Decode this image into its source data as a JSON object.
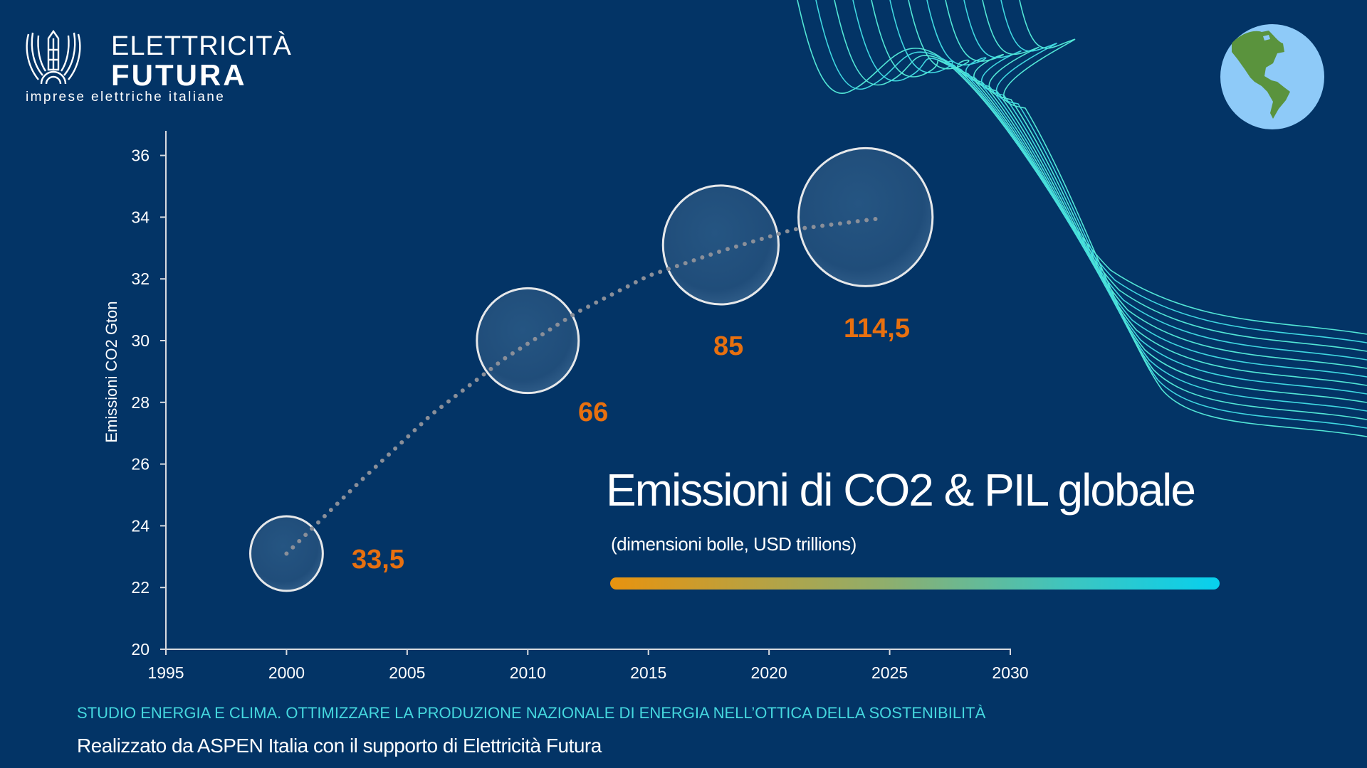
{
  "logo": {
    "line1": "ELETTRICITÀ",
    "line2": "FUTURA",
    "tagline": "imprese elettriche italiane"
  },
  "chart_data": {
    "type": "scatter",
    "title": "Emissioni di CO2 & PIL globale",
    "subtitle": "(dimensioni bolle, USD trillions)",
    "xlabel": "",
    "ylabel": "Emissioni CO2 Gton",
    "xlim": [
      1995,
      2030
    ],
    "ylim": [
      20,
      36.8
    ],
    "xticks": [
      "1995",
      "2000",
      "2005",
      "2010",
      "2015",
      "2020",
      "2025",
      "2030"
    ],
    "yticks": [
      "20",
      "22",
      "24",
      "26",
      "28",
      "30",
      "32",
      "34",
      "36"
    ],
    "bubbles": [
      {
        "x": 2000,
        "y": 23.1,
        "size": 33.5,
        "label": "33,5"
      },
      {
        "x": 2010,
        "y": 30.0,
        "size": 66,
        "label": "66"
      },
      {
        "x": 2018,
        "y": 33.1,
        "size": 85,
        "label": "85"
      },
      {
        "x": 2024,
        "y": 34.0,
        "size": 114.5,
        "label": "114,5"
      }
    ],
    "trend": [
      [
        2000,
        23.1
      ],
      [
        2003,
        25.4
      ],
      [
        2006,
        27.6
      ],
      [
        2009,
        29.4
      ],
      [
        2012,
        30.9
      ],
      [
        2015,
        32.1
      ],
      [
        2018,
        32.9
      ],
      [
        2021,
        33.6
      ],
      [
        2024.5,
        33.95
      ]
    ],
    "colors": {
      "background": "#033466",
      "label": "#e8700f",
      "bubble": "#23507e",
      "trend": "#8a8f99"
    }
  },
  "footer": {
    "study": "STUDIO ENERGIA E CLIMA. OTTIMIZZARE LA PRODUZIONE NAZIONALE DI ENERGIA NELL’OTTICA DELLA SOSTENIBILITÀ",
    "credit": "Realizzato da ASPEN Italia con il supporto di Elettricità Futura"
  }
}
